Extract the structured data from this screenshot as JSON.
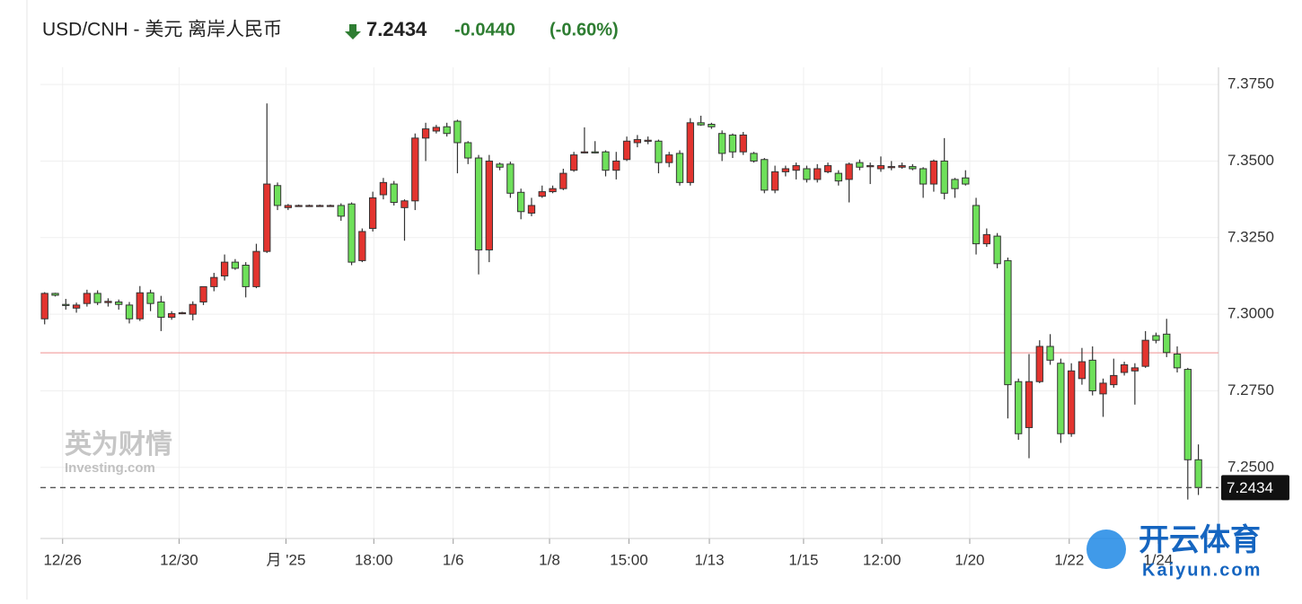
{
  "chart_data": {
    "type": "candlestick",
    "title": "USD/CNH - 美元 离岸人民币",
    "price": 7.2434,
    "change": {
      "value": -0.044,
      "label": "-0.0440"
    },
    "change_percent": {
      "value": -0.6,
      "label": "(-0.60%)"
    },
    "prev_close": 7.2874,
    "up_color": "#e3342f",
    "down_color": "#6ee05a",
    "grid": true,
    "watermarks": [
      "英为财情",
      "Investing.com",
      "开云体育",
      "Kaiyun.com"
    ],
    "xlim": [
      -0.4,
      110.9
    ],
    "ylim": [
      7.2268,
      7.3806
    ],
    "yticks": [
      {
        "value": 7.25,
        "label": "7.2500"
      },
      {
        "value": 7.275,
        "label": "7.2750"
      },
      {
        "value": 7.3,
        "label": "7.3000"
      },
      {
        "value": 7.325,
        "label": "7.3250"
      },
      {
        "value": 7.35,
        "label": "7.3500"
      },
      {
        "value": 7.375,
        "label": "7.3750"
      }
    ],
    "xticks": [
      {
        "value": 1.7,
        "label": "12/26"
      },
      {
        "value": 12.7,
        "label": "12/30"
      },
      {
        "value": 22.8,
        "label": "月 '25"
      },
      {
        "value": 31.1,
        "label": "18:00"
      },
      {
        "value": 38.6,
        "label": "1/6"
      },
      {
        "value": 47.7,
        "label": "1/8"
      },
      {
        "value": 55.2,
        "label": "15:00"
      },
      {
        "value": 62.8,
        "label": "1/13"
      },
      {
        "value": 71.7,
        "label": "1/15"
      },
      {
        "value": 79.1,
        "label": "12:00"
      },
      {
        "value": 87.4,
        "label": "1/20"
      },
      {
        "value": 96.8,
        "label": "1/22"
      },
      {
        "value": 105.2,
        "label": "1/24"
      }
    ],
    "open": [
      7.2985,
      7.3068,
      7.3032,
      7.302,
      7.3035,
      7.3068,
      7.3038,
      7.304,
      7.303,
      7.2985,
      7.307,
      7.304,
      7.299,
      7.3005,
      7.3,
      7.304,
      7.309,
      7.3125,
      7.317,
      7.316,
      7.309,
      7.3205,
      7.342,
      7.3348,
      7.3355,
      7.3355,
      7.3355,
      7.3355,
      7.3355,
      7.336,
      7.3175,
      7.328,
      7.339,
      7.3425,
      7.3348,
      7.337,
      7.3575,
      7.3598,
      7.3612,
      7.363,
      7.356,
      7.351,
      7.321,
      7.349,
      7.349,
      7.3398,
      7.333,
      7.3385,
      7.34,
      7.341,
      7.347,
      7.353,
      7.353,
      7.353,
      7.347,
      7.3505,
      7.356,
      7.3565,
      7.3565,
      7.3495,
      7.3525,
      7.343,
      7.3625,
      7.362,
      7.359,
      7.3585,
      7.353,
      7.3525,
      7.3505,
      7.3405,
      7.3465,
      7.347,
      7.3475,
      7.344,
      7.3465,
      7.346,
      7.344,
      7.3495,
      7.3482,
      7.3475,
      7.348,
      7.348,
      7.3482,
      7.3475,
      7.3425,
      7.35,
      7.344,
      7.3445,
      7.3355,
      7.323,
      7.3255,
      7.3175,
      7.278,
      7.263,
      7.278,
      7.2895,
      7.284,
      7.261,
      7.279,
      7.285,
      7.274,
      7.277,
      7.281,
      7.2815,
      7.283,
      7.293,
      7.2935,
      7.287,
      7.282,
      7.2525
    ],
    "high": [
      7.3072,
      7.307,
      7.305,
      7.3038,
      7.308,
      7.3078,
      7.3052,
      7.3048,
      7.304,
      7.3092,
      7.308,
      7.306,
      7.301,
      7.3008,
      7.3042,
      7.308,
      7.3135,
      7.3195,
      7.318,
      7.317,
      7.323,
      7.3688,
      7.343,
      7.336,
      7.3358,
      7.3358,
      7.3358,
      7.3358,
      7.3362,
      7.3365,
      7.328,
      7.34,
      7.3445,
      7.3435,
      7.3375,
      7.359,
      7.3625,
      7.3618,
      7.3625,
      7.3635,
      7.3565,
      7.352,
      7.352,
      7.3495,
      7.3498,
      7.341,
      7.338,
      7.342,
      7.342,
      7.3475,
      7.353,
      7.361,
      7.3565,
      7.3535,
      7.353,
      7.358,
      7.3585,
      7.358,
      7.357,
      7.353,
      7.3535,
      7.364,
      7.3648,
      7.3625,
      7.36,
      7.359,
      7.3595,
      7.353,
      7.351,
      7.3485,
      7.3485,
      7.3495,
      7.3485,
      7.349,
      7.3495,
      7.347,
      7.3495,
      7.3505,
      7.3495,
      7.3515,
      7.35,
      7.3495,
      7.349,
      7.348,
      7.3505,
      7.3575,
      7.3445,
      7.347,
      7.338,
      7.328,
      7.3265,
      7.3185,
      7.279,
      7.287,
      7.2915,
      7.2935,
      7.2855,
      7.284,
      7.289,
      7.2895,
      7.279,
      7.2855,
      7.2845,
      7.284,
      7.2945,
      7.294,
      7.2985,
      7.2895,
      7.2825,
      7.2575
    ],
    "low": [
      7.2967,
      7.3058,
      7.3015,
      7.3005,
      7.3025,
      7.303,
      7.3025,
      7.3015,
      7.297,
      7.2978,
      7.301,
      7.2945,
      7.2982,
      7.3,
      7.298,
      7.303,
      7.3075,
      7.311,
      7.3145,
      7.3055,
      7.3085,
      7.32,
      7.334,
      7.334,
      7.3352,
      7.3352,
      7.3352,
      7.3352,
      7.3305,
      7.316,
      7.317,
      7.327,
      7.3375,
      7.3355,
      7.324,
      7.334,
      7.35,
      7.359,
      7.358,
      7.346,
      7.349,
      7.313,
      7.317,
      7.347,
      7.338,
      7.331,
      7.332,
      7.338,
      7.3395,
      7.3405,
      7.3465,
      7.3525,
      7.3525,
      7.345,
      7.344,
      7.35,
      7.3545,
      7.3555,
      7.346,
      7.348,
      7.342,
      7.342,
      7.3615,
      7.3605,
      7.35,
      7.351,
      7.352,
      7.3495,
      7.3395,
      7.3395,
      7.345,
      7.344,
      7.343,
      7.343,
      7.346,
      7.342,
      7.3365,
      7.347,
      7.3425,
      7.3465,
      7.347,
      7.3475,
      7.347,
      7.338,
      7.34,
      7.3375,
      7.338,
      7.342,
      7.3195,
      7.322,
      7.315,
      7.266,
      7.259,
      7.253,
      7.2775,
      7.2835,
      7.258,
      7.26,
      7.277,
      7.2735,
      7.2665,
      7.276,
      7.28,
      7.2705,
      7.2825,
      7.2905,
      7.286,
      7.281,
      7.2395,
      7.241
    ],
    "close": [
      7.3068,
      7.3062,
      7.303,
      7.303,
      7.3068,
      7.3038,
      7.3042,
      7.3032,
      7.2985,
      7.307,
      7.3035,
      7.299,
      7.3002,
      7.3005,
      7.3032,
      7.309,
      7.312,
      7.317,
      7.315,
      7.309,
      7.3205,
      7.3425,
      7.3355,
      7.3355,
      7.3355,
      7.3355,
      7.3355,
      7.3355,
      7.332,
      7.317,
      7.327,
      7.338,
      7.343,
      7.3365,
      7.337,
      7.3575,
      7.3605,
      7.361,
      7.359,
      7.356,
      7.351,
      7.321,
      7.35,
      7.348,
      7.3395,
      7.3335,
      7.3355,
      7.34,
      7.341,
      7.346,
      7.352,
      7.353,
      7.3528,
      7.347,
      7.35,
      7.3565,
      7.357,
      7.3568,
      7.3495,
      7.352,
      7.343,
      7.3625,
      7.3618,
      7.3612,
      7.3525,
      7.353,
      7.3585,
      7.35,
      7.3405,
      7.3465,
      7.3475,
      7.3485,
      7.344,
      7.3475,
      7.3485,
      7.3435,
      7.349,
      7.348,
      7.3485,
      7.3485,
      7.3482,
      7.3485,
      7.3475,
      7.3425,
      7.35,
      7.3395,
      7.341,
      7.3425,
      7.323,
      7.326,
      7.3165,
      7.277,
      7.261,
      7.278,
      7.2895,
      7.285,
      7.261,
      7.2815,
      7.2845,
      7.275,
      7.2775,
      7.28,
      7.2835,
      7.2825,
      7.2915,
      7.2915,
      7.2875,
      7.2825,
      7.2525,
      7.2434
    ]
  }
}
